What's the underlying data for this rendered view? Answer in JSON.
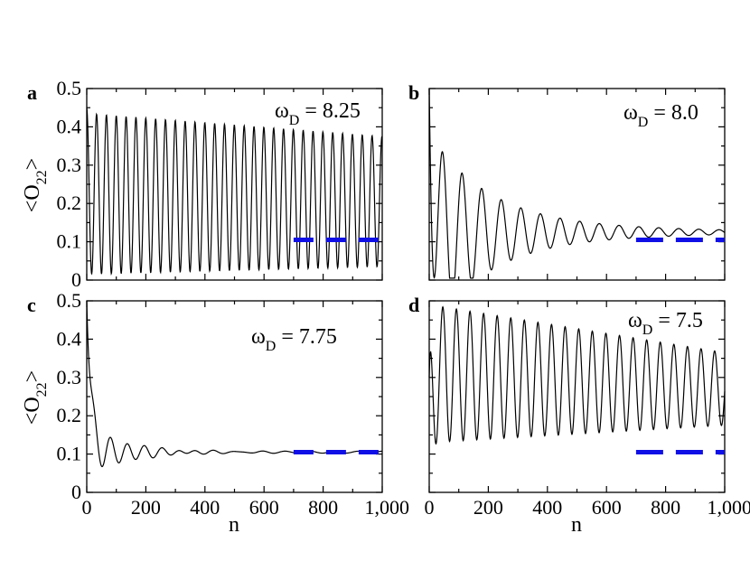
{
  "chart_data": [
    {
      "id": "a",
      "type": "line",
      "panel_label": "a",
      "annotation": {
        "symbol": "ω",
        "subscript": "D",
        "value": "8.25"
      },
      "ylabel": {
        "main": "<O",
        "sub": "22",
        "close": ">"
      },
      "xlabel": "",
      "xlim": [
        0,
        1000
      ],
      "ylim": [
        0,
        0.5
      ],
      "yticks": [
        "0",
        "0.1",
        "0.2",
        "0.3",
        "0.4",
        "0.5"
      ],
      "xticks": [],
      "signal": {
        "kind": "oscillation",
        "period": 33.3,
        "start": 0.45,
        "amp_start": 0.21,
        "amp_end": 0.17,
        "center_start": 0.225,
        "center_end": 0.205
      },
      "reference": {
        "y": 0.105,
        "x_from": 700,
        "x_to": 1000
      }
    },
    {
      "id": "b",
      "type": "line",
      "panel_label": "b",
      "annotation": {
        "symbol": "ω",
        "subscript": "D",
        "value": "8.0"
      },
      "ylabel": null,
      "xlabel": "",
      "xlim": [
        0,
        1000
      ],
      "ylim": [
        0,
        0.5
      ],
      "yticks": [],
      "xticks": [],
      "signal": {
        "kind": "damped",
        "period": 66.5,
        "start": 0.5,
        "center": 0.125,
        "amp": 0.26,
        "decay": 220,
        "phase_at": 45
      },
      "reference": {
        "y": 0.105,
        "x_from": 700,
        "x_to": 1000
      }
    },
    {
      "id": "c",
      "type": "line",
      "panel_label": "c",
      "annotation": {
        "symbol": "ω",
        "subscript": "D",
        "value": "7.75"
      },
      "ylabel": {
        "main": "<O",
        "sub": "22",
        "close": ">"
      },
      "xlabel": "n",
      "xlim": [
        0,
        1000
      ],
      "ylim": [
        0,
        0.5
      ],
      "yticks": [
        "0",
        "0.1",
        "0.2",
        "0.3",
        "0.4",
        "0.5"
      ],
      "xticks": [
        "0",
        "200",
        "400",
        "600",
        "800",
        "1,000"
      ],
      "signal": {
        "kind": "relax",
        "period": 58,
        "start": 0.5,
        "center": 0.105,
        "amp": 0.07,
        "decay": 130,
        "phase_at": 80
      },
      "reference": {
        "y": 0.105,
        "x_from": 700,
        "x_to": 1000
      }
    },
    {
      "id": "d",
      "type": "line",
      "panel_label": "d",
      "annotation": {
        "symbol": "ω",
        "subscript": "D",
        "value": "7.5"
      },
      "ylabel": null,
      "xlabel": "n",
      "xlim": [
        0,
        1000
      ],
      "ylim": [
        0,
        0.5
      ],
      "yticks": [],
      "xticks": [
        "0",
        "200",
        "400",
        "600",
        "800",
        "1,000"
      ],
      "signal": {
        "kind": "oscillation",
        "period": 46,
        "start": 0.3,
        "amp_start": 0.18,
        "amp_end": 0.095,
        "center_start": 0.31,
        "center_end": 0.27
      },
      "reference": {
        "y": 0.105,
        "x_from": 700,
        "x_to": 1000
      }
    }
  ]
}
